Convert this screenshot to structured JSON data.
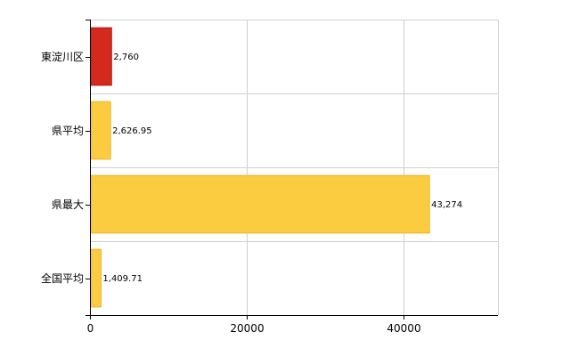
{
  "chart_data": {
    "type": "bar",
    "orientation": "horizontal",
    "categories": [
      "東淀川区",
      "県平均",
      "県最大",
      "全国平均"
    ],
    "values": [
      2760,
      2626.95,
      43274,
      1409.71
    ],
    "value_labels": [
      "2,760",
      "2,626.95",
      "43,274",
      "1,409.71"
    ],
    "bar_colors": [
      "#d42a1e",
      "#fbcb40",
      "#fbcb40",
      "#fbcb40"
    ],
    "bar_border_colors": [
      "#b01e14",
      "#e8b52c",
      "#e8b52c",
      "#e8b52c"
    ],
    "xlim": [
      0,
      52000
    ],
    "x_ticks": [
      0,
      20000,
      40000
    ],
    "x_tick_labels": [
      "0",
      "20000",
      "40000"
    ],
    "grid": true,
    "grid_color": "#d0d0d0",
    "axis_color": "#000000",
    "title": "",
    "xlabel": "",
    "ylabel": ""
  }
}
